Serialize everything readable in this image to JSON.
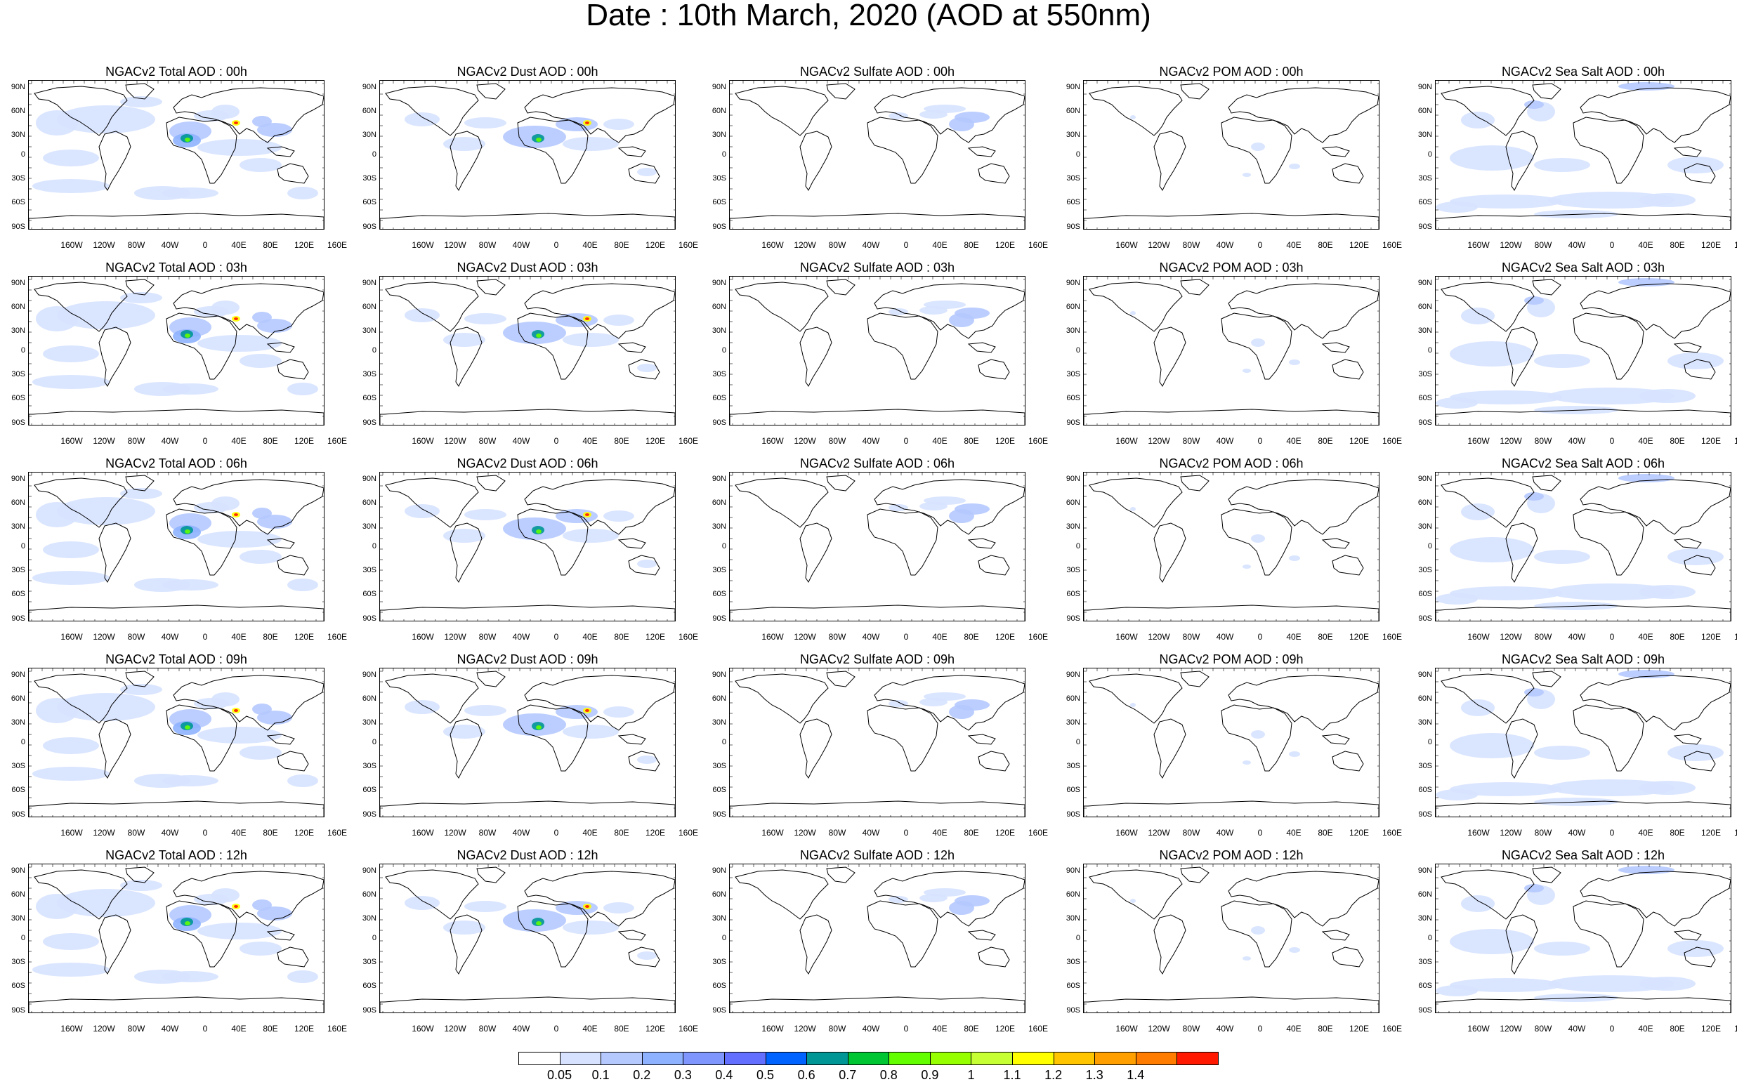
{
  "title": "Date : 10th March, 2020 (AOD at 550nm)",
  "lat_ticks": [
    "90N",
    "60N",
    "30N",
    "0",
    "30S",
    "60S",
    "90S"
  ],
  "lon_ticks": [
    "160W",
    "120W",
    "80W",
    "40W",
    "0",
    "40E",
    "80E",
    "120E",
    "160E"
  ],
  "panels": [
    [
      "NGACv2 Total AOD : 00h",
      "NGACv2 Dust AOD : 00h",
      "NGACv2 Sulfate AOD : 00h",
      "NGACv2 POM AOD : 00h",
      "NGACv2 Sea Salt AOD : 00h"
    ],
    [
      "NGACv2 Total AOD : 03h",
      "NGACv2 Dust AOD : 03h",
      "NGACv2 Sulfate AOD : 03h",
      "NGACv2 POM AOD : 03h",
      "NGACv2 Sea Salt AOD : 03h"
    ],
    [
      "NGACv2 Total AOD : 06h",
      "NGACv2 Dust AOD : 06h",
      "NGACv2 Sulfate AOD : 06h",
      "NGACv2 POM AOD : 06h",
      "NGACv2 Sea Salt AOD : 06h"
    ],
    [
      "NGACv2 Total AOD : 09h",
      "NGACv2 Dust AOD : 09h",
      "NGACv2 Sulfate AOD : 09h",
      "NGACv2 POM AOD : 09h",
      "NGACv2 Sea Salt  AOD : 09h"
    ],
    [
      "NGACv2 Total AOD : 12h",
      "NGACv2 Dust AOD : 12h",
      "NGACv2 Sulfate AOD : 12h",
      "NGACv2 POM  AOD : 12h",
      "NGACv2 Sea Salt AOD : 12h"
    ]
  ],
  "colorbar": {
    "labels": [
      "0.05",
      "0.1",
      "0.2",
      "0.3",
      "0.4",
      "0.5",
      "0.6",
      "0.7",
      "0.8",
      "0.9",
      "1",
      "1.1",
      "1.2",
      "1.3",
      "1.4"
    ],
    "colors": [
      "#ffffff",
      "#d6e2ff",
      "#b5c9ff",
      "#8eb2ff",
      "#7f96ff",
      "#6370ff",
      "#0063ff",
      "#009696",
      "#00c633",
      "#63ff00",
      "#96ff00",
      "#c6ff33",
      "#ffff00",
      "#ffc600",
      "#ffa000",
      "#ff7c00",
      "#ff1900"
    ]
  },
  "features": {
    "land_outline": "#000000",
    "aerosol_levels": {
      "Total": "high",
      "Dust": "medium",
      "Sulfate": "low",
      "POM": "very-low",
      "SeaSalt": "ocean"
    }
  }
}
